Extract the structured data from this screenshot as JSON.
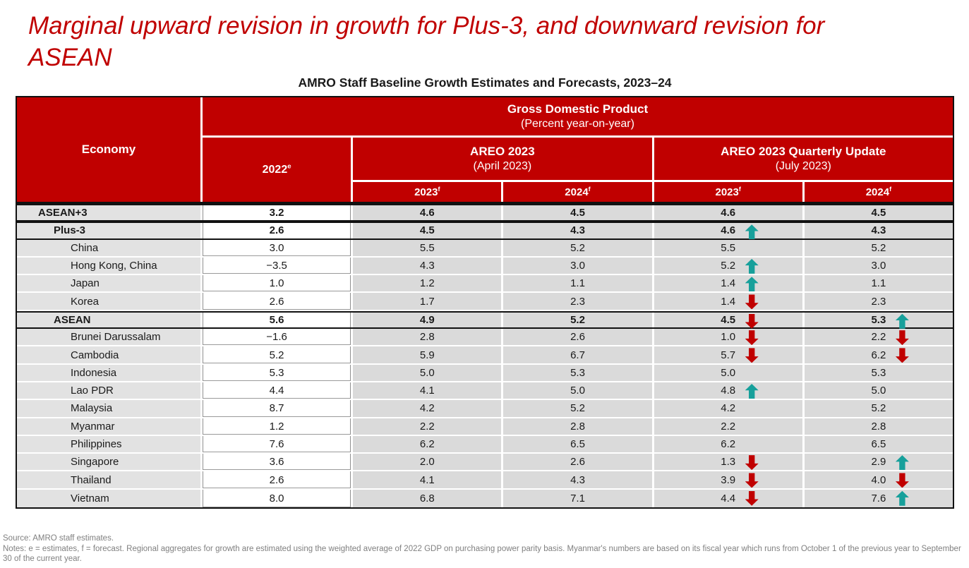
{
  "title": "Marginal upward revision in growth for Plus-3, and downward revision for ASEAN",
  "caption": "AMRO Staff Baseline Growth Estimates and Forecasts, 2023–24",
  "colors": {
    "header_red": "#C00000",
    "up_arrow_teal": "#17A09B",
    "down_arrow_red": "#C00000",
    "cell_gray": "#DADADA",
    "economy_col_gray": "#E2E2E2",
    "footer_gray": "#808080"
  },
  "table": {
    "header": {
      "economy": "Economy",
      "gdp_title": "Gross Domestic Product",
      "gdp_subtitle": "(Percent year-on-year)",
      "col_2022": {
        "label": "2022",
        "sup": "e"
      },
      "areo": {
        "title": "AREO 2023",
        "subtitle": "(April 2023)"
      },
      "quarterly": {
        "title": "AREO 2023 Quarterly Update",
        "subtitle": "(July 2023)"
      },
      "year_cols": [
        {
          "label": "2023",
          "sup": "f"
        },
        {
          "label": "2024",
          "sup": "f"
        },
        {
          "label": "2023",
          "sup": "f"
        },
        {
          "label": "2024",
          "sup": "f"
        }
      ]
    },
    "rows": [
      {
        "economy": "ASEAN+3",
        "level": 1,
        "bold": true,
        "v2022": "3.2",
        "areo2023": "4.6",
        "areo2024": "4.5",
        "q2023": "4.6",
        "q2023_arrow": null,
        "q2024": "4.5",
        "q2024_arrow": null
      },
      {
        "economy": "Plus-3",
        "level": 2,
        "bold": true,
        "v2022": "2.6",
        "areo2023": "4.5",
        "areo2024": "4.3",
        "q2023": "4.6",
        "q2023_arrow": "up",
        "q2024": "4.3",
        "q2024_arrow": null
      },
      {
        "economy": "China",
        "level": 3,
        "bold": false,
        "v2022": "3.0",
        "areo2023": "5.5",
        "areo2024": "5.2",
        "q2023": "5.5",
        "q2023_arrow": null,
        "q2024": "5.2",
        "q2024_arrow": null
      },
      {
        "economy": "Hong Kong, China",
        "level": 3,
        "bold": false,
        "v2022": "−3.5",
        "areo2023": "4.3",
        "areo2024": "3.0",
        "q2023": "5.2",
        "q2023_arrow": "up",
        "q2024": "3.0",
        "q2024_arrow": null
      },
      {
        "economy": "Japan",
        "level": 3,
        "bold": false,
        "v2022": "1.0",
        "areo2023": "1.2",
        "areo2024": "1.1",
        "q2023": "1.4",
        "q2023_arrow": "up",
        "q2024": "1.1",
        "q2024_arrow": null
      },
      {
        "economy": "Korea",
        "level": 3,
        "bold": false,
        "v2022": "2.6",
        "areo2023": "1.7",
        "areo2024": "2.3",
        "q2023": "1.4",
        "q2023_arrow": "down",
        "q2024": "2.3",
        "q2024_arrow": null
      },
      {
        "economy": "ASEAN",
        "level": 2,
        "bold": true,
        "v2022": "5.6",
        "areo2023": "4.9",
        "areo2024": "5.2",
        "q2023": "4.5",
        "q2023_arrow": "down",
        "q2024": "5.3",
        "q2024_arrow": "up"
      },
      {
        "economy": "Brunei Darussalam",
        "level": 3,
        "bold": false,
        "v2022": "−1.6",
        "areo2023": "2.8",
        "areo2024": "2.6",
        "q2023": "1.0",
        "q2023_arrow": "down",
        "q2024": "2.2",
        "q2024_arrow": "down"
      },
      {
        "economy": "Cambodia",
        "level": 3,
        "bold": false,
        "v2022": "5.2",
        "areo2023": "5.9",
        "areo2024": "6.7",
        "q2023": "5.7",
        "q2023_arrow": "down",
        "q2024": "6.2",
        "q2024_arrow": "down"
      },
      {
        "economy": "Indonesia",
        "level": 3,
        "bold": false,
        "v2022": "5.3",
        "areo2023": "5.0",
        "areo2024": "5.3",
        "q2023": "5.0",
        "q2023_arrow": null,
        "q2024": "5.3",
        "q2024_arrow": null
      },
      {
        "economy": "Lao PDR",
        "level": 3,
        "bold": false,
        "v2022": "4.4",
        "areo2023": "4.1",
        "areo2024": "5.0",
        "q2023": "4.8",
        "q2023_arrow": "up",
        "q2024": "5.0",
        "q2024_arrow": null
      },
      {
        "economy": "Malaysia",
        "level": 3,
        "bold": false,
        "v2022": "8.7",
        "areo2023": "4.2",
        "areo2024": "5.2",
        "q2023": "4.2",
        "q2023_arrow": null,
        "q2024": "5.2",
        "q2024_arrow": null
      },
      {
        "economy": "Myanmar",
        "level": 3,
        "bold": false,
        "v2022": "1.2",
        "areo2023": "2.2",
        "areo2024": "2.8",
        "q2023": "2.2",
        "q2023_arrow": null,
        "q2024": "2.8",
        "q2024_arrow": null
      },
      {
        "economy": "Philippines",
        "level": 3,
        "bold": false,
        "v2022": "7.6",
        "areo2023": "6.2",
        "areo2024": "6.5",
        "q2023": "6.2",
        "q2023_arrow": null,
        "q2024": "6.5",
        "q2024_arrow": null
      },
      {
        "economy": "Singapore",
        "level": 3,
        "bold": false,
        "v2022": "3.6",
        "areo2023": "2.0",
        "areo2024": "2.6",
        "q2023": "1.3",
        "q2023_arrow": "down",
        "q2024": "2.9",
        "q2024_arrow": "up"
      },
      {
        "economy": "Thailand",
        "level": 3,
        "bold": false,
        "v2022": "2.6",
        "areo2023": "4.1",
        "areo2024": "4.3",
        "q2023": "3.9",
        "q2023_arrow": "down",
        "q2024": "4.0",
        "q2024_arrow": "down"
      },
      {
        "economy": "Vietnam",
        "level": 3,
        "bold": false,
        "v2022": "8.0",
        "areo2023": "6.8",
        "areo2024": "7.1",
        "q2023": "4.4",
        "q2023_arrow": "down",
        "q2024": "7.6",
        "q2024_arrow": "up"
      }
    ]
  },
  "footer": {
    "source": "Source: AMRO staff estimates.",
    "notes": "Notes: e = estimates, f = forecast. Regional aggregates for growth are estimated using the weighted average of 2022 GDP on purchasing power parity basis. Myanmar's numbers are based on its fiscal year which runs from October 1 of the previous year to September 30 of the current year."
  }
}
